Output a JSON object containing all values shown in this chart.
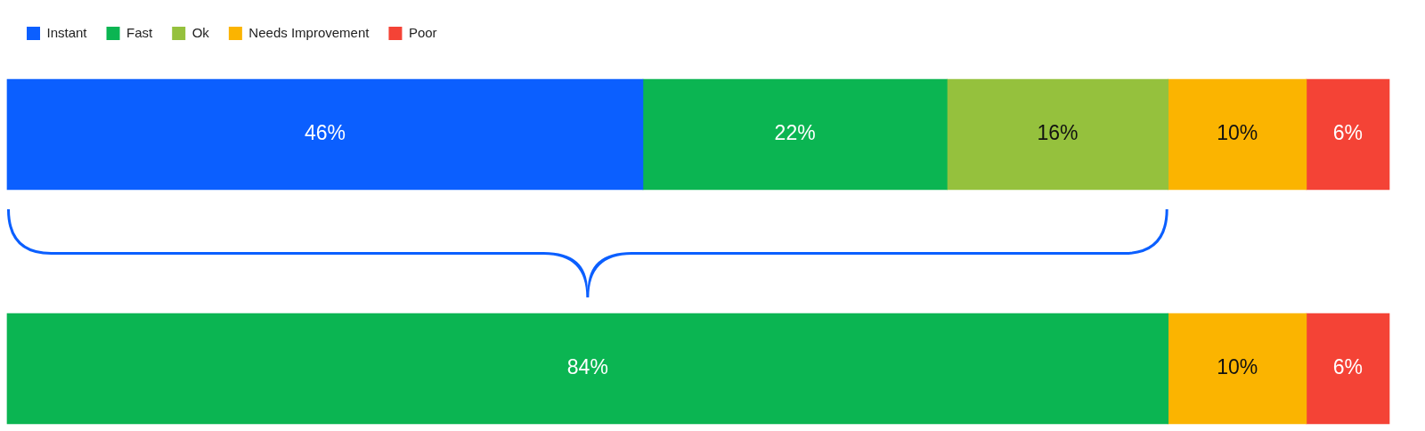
{
  "chart_data": {
    "type": "bar",
    "orientation": "horizontal",
    "stacked": true,
    "categories": [
      null,
      null
    ],
    "xlim": [
      0,
      100
    ],
    "tick_labels": false,
    "legend": "top left",
    "series": [
      {
        "name": "Instant",
        "color": "#0b5fff",
        "values": [
          46,
          null
        ],
        "value_labels": [
          "46%",
          null
        ]
      },
      {
        "name": "Fast",
        "color": "#0bb552",
        "values": [
          22,
          84
        ],
        "value_labels": [
          "22%",
          "84%"
        ]
      },
      {
        "name": "Ok",
        "color": "#95c13d",
        "values": [
          16,
          null
        ],
        "value_labels": [
          "16%",
          null
        ]
      },
      {
        "name": "Needs Improvement",
        "color": "#fbb400",
        "values": [
          10,
          10
        ],
        "value_labels": [
          "10%",
          "10%"
        ]
      },
      {
        "name": "Poor",
        "color": "#f44336",
        "values": [
          6,
          6
        ],
        "value_labels": [
          "6%",
          "6%"
        ]
      }
    ]
  }
}
